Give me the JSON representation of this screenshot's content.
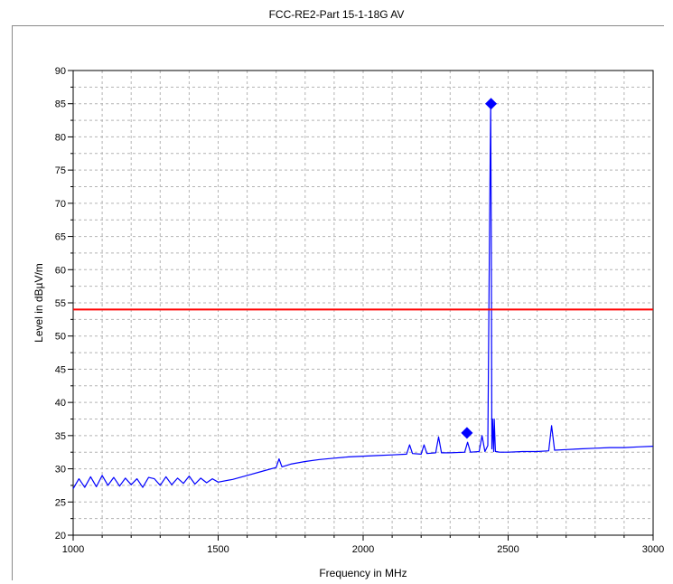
{
  "chart_data": {
    "type": "line",
    "title": "FCC-RE2-Part 15-1-18G AV",
    "xlabel": "Frequency in MHz",
    "ylabel": "Level in dBµV/m",
    "xlim": [
      1000,
      3000
    ],
    "ylim": [
      20,
      90
    ],
    "x_ticks": [
      1000,
      1500,
      2000,
      2500,
      3000
    ],
    "y_ticks": [
      20,
      25,
      30,
      35,
      40,
      45,
      50,
      55,
      60,
      65,
      70,
      75,
      80,
      85,
      90
    ],
    "grid": true,
    "series": [
      {
        "type": "line",
        "color": "#0000ff",
        "x": [
          1000,
          1020,
          1040,
          1060,
          1080,
          1100,
          1120,
          1140,
          1160,
          1180,
          1200,
          1220,
          1240,
          1260,
          1280,
          1300,
          1320,
          1340,
          1360,
          1380,
          1400,
          1420,
          1440,
          1460,
          1480,
          1500,
          1550,
          1600,
          1650,
          1700,
          1710,
          1720,
          1750,
          1800,
          1850,
          1900,
          1950,
          2000,
          2050,
          2100,
          2150,
          2160,
          2170,
          2200,
          2210,
          2220,
          2250,
          2260,
          2270,
          2300,
          2350,
          2360,
          2370,
          2400,
          2410,
          2420,
          2430,
          2436,
          2440,
          2442,
          2444,
          2446,
          2450,
          2452,
          2456,
          2460,
          2470,
          2500,
          2550,
          2600,
          2640,
          2650,
          2660,
          2700,
          2750,
          2800,
          2850,
          2900,
          2950,
          3000
        ],
        "y": [
          27.0,
          28.5,
          27.2,
          28.8,
          27.3,
          29.0,
          27.5,
          28.7,
          27.4,
          28.6,
          27.6,
          28.5,
          27.2,
          28.7,
          28.5,
          27.5,
          28.8,
          27.6,
          28.6,
          27.8,
          28.9,
          27.7,
          28.6,
          27.9,
          28.5,
          28.0,
          28.4,
          29.0,
          29.6,
          30.2,
          31.5,
          30.3,
          30.7,
          31.1,
          31.4,
          31.6,
          31.8,
          31.9,
          32.0,
          32.1,
          32.2,
          33.6,
          32.3,
          32.2,
          33.6,
          32.3,
          32.4,
          34.8,
          32.4,
          32.4,
          32.5,
          34.0,
          32.5,
          32.6,
          35.0,
          32.6,
          33.5,
          67.5,
          85.0,
          62.0,
          33.0,
          37.5,
          32.6,
          37.5,
          32.6,
          32.6,
          32.5,
          32.5,
          32.6,
          32.6,
          32.7,
          36.5,
          32.8,
          32.9,
          33.0,
          33.1,
          33.2,
          33.2,
          33.3,
          33.4
        ]
      },
      {
        "type": "limit",
        "color": "#ff0000",
        "x": [
          1000,
          3000
        ],
        "y": [
          54,
          54
        ]
      },
      {
        "type": "markers",
        "color": "#0000ff",
        "points": [
          {
            "x": 2441,
            "y": 85.0
          },
          {
            "x": 2358,
            "y": 35.4
          }
        ]
      }
    ]
  }
}
